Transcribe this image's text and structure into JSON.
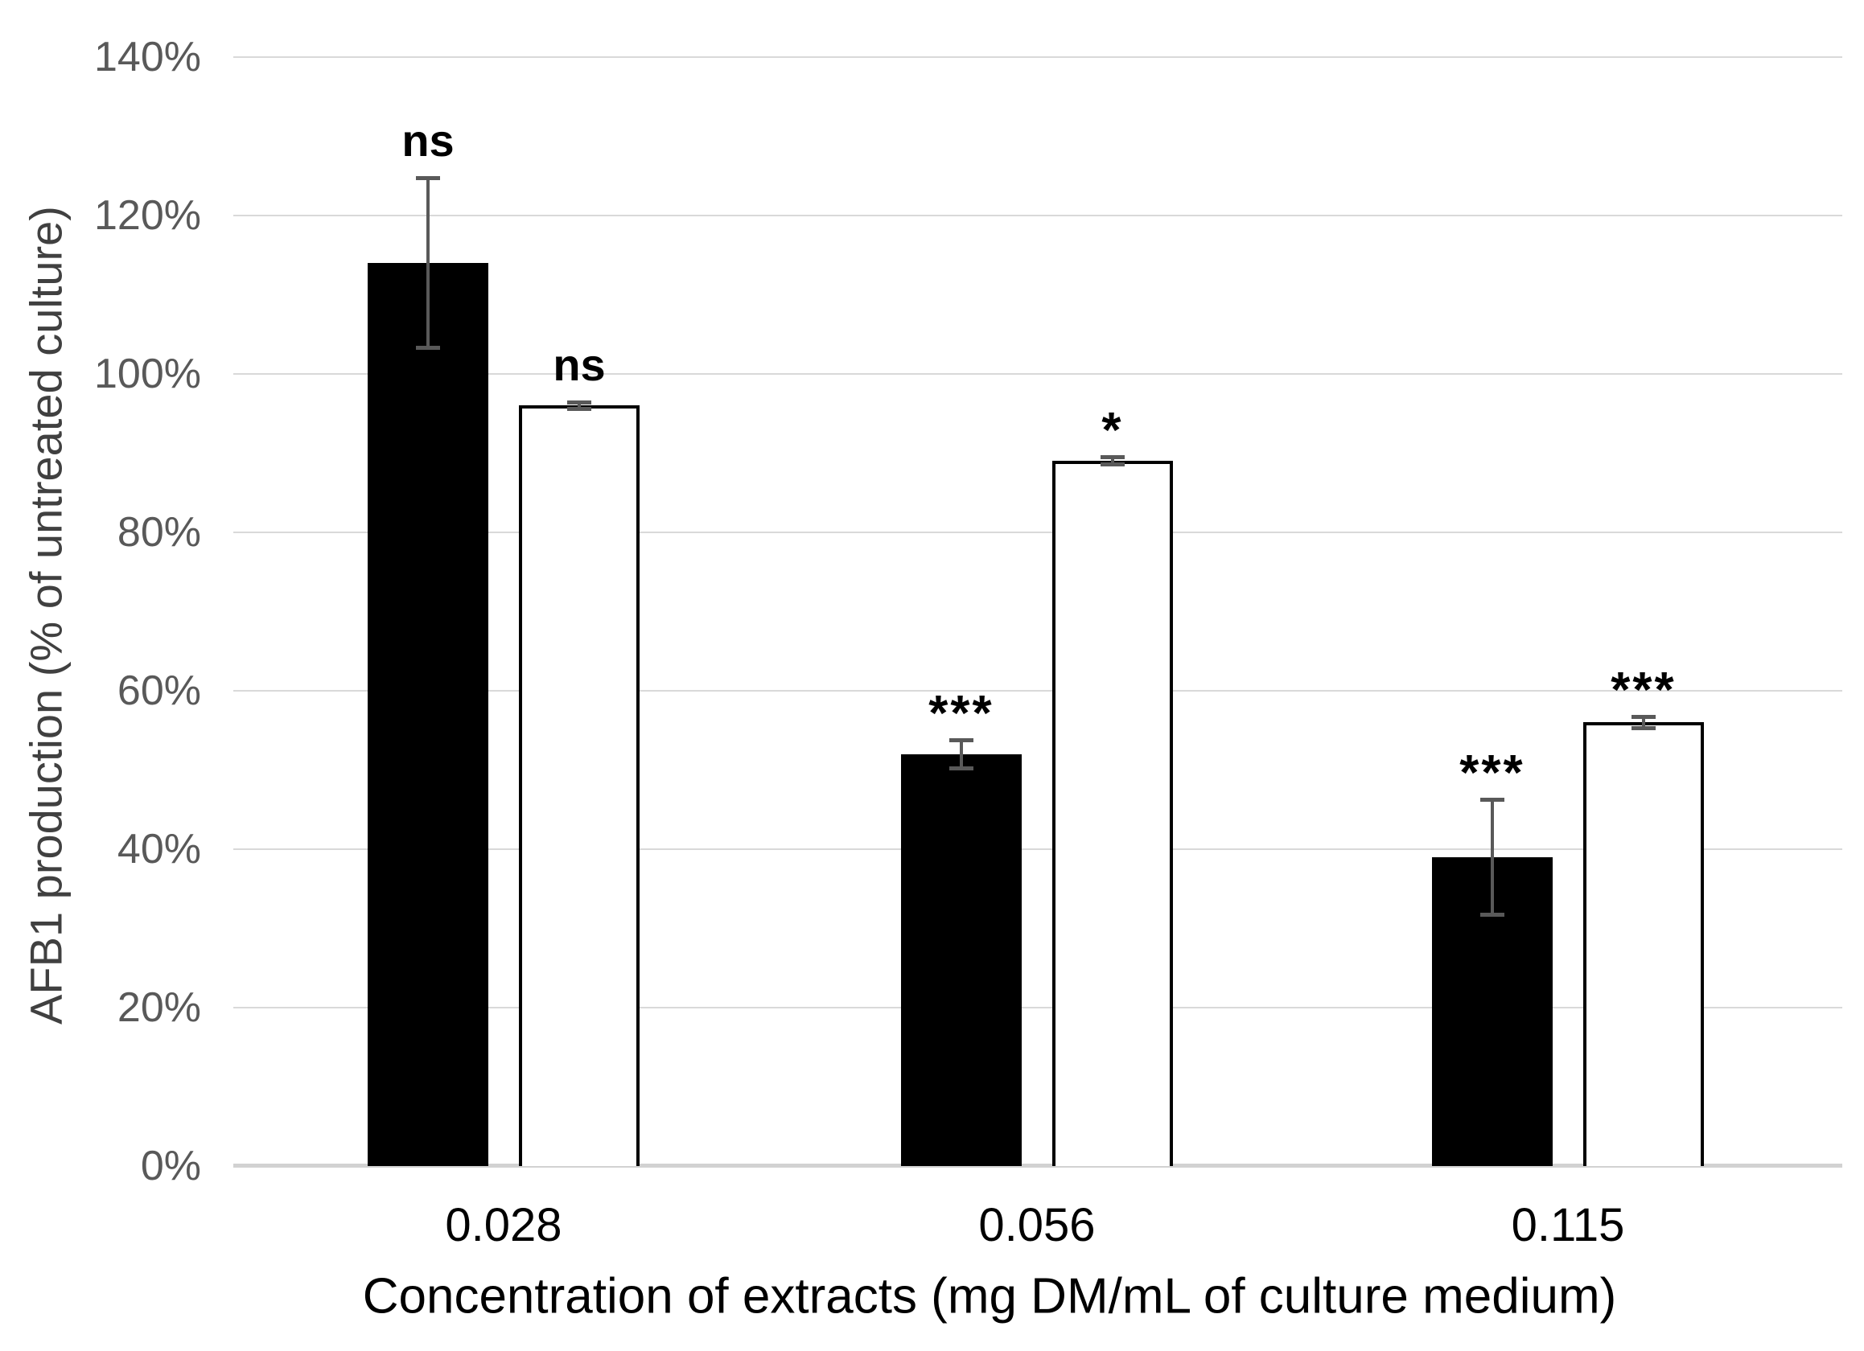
{
  "chart_data": {
    "type": "bar",
    "title": "",
    "xlabel": "Concentration of extracts (mg DM/mL of culture medium)",
    "ylabel": "AFB1 production (% of untreated culture)",
    "categories": [
      "0.028",
      "0.056",
      "0.115"
    ],
    "y_tick_labels": [
      "0%",
      "20%",
      "40%",
      "60%",
      "80%",
      "100%",
      "120%",
      "140%"
    ],
    "y_tick_values": [
      0,
      20,
      40,
      60,
      80,
      100,
      120,
      140
    ],
    "ylim": [
      0,
      140
    ],
    "grid": "horizontal",
    "legend_position": "none",
    "units": "percent of untreated culture",
    "series": [
      {
        "name": "black-bars",
        "fill": "#000000",
        "outline": "#000000",
        "values": [
          114,
          52,
          39
        ],
        "errors": [
          11,
          2,
          7.5
        ],
        "significance": [
          "ns",
          "***",
          "***"
        ]
      },
      {
        "name": "white-bars",
        "fill": "#ffffff",
        "outline": "#000000",
        "values": [
          96,
          89,
          56
        ],
        "errors": [
          0.7,
          0.7,
          1
        ],
        "significance": [
          "ns",
          "*",
          "***"
        ]
      }
    ],
    "colors": {
      "gridline": "#d9d9d9",
      "axis_line": "#d2d2d2",
      "error_bar": "#595959",
      "y_tick_text": "#595959",
      "y_title_text": "#404040",
      "x_text": "#000000",
      "annotation_text": "#000000"
    }
  }
}
